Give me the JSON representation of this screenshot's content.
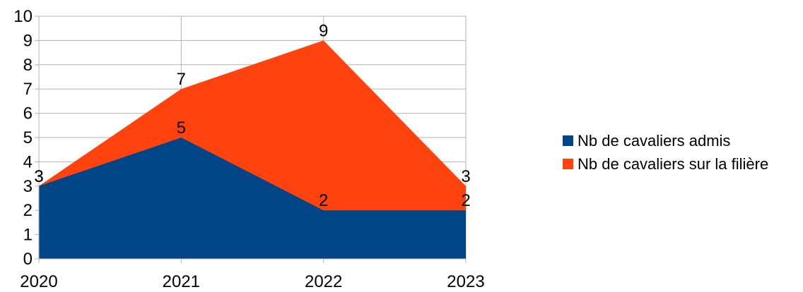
{
  "chart_data": {
    "type": "area",
    "stacked": false,
    "categories": [
      "2020",
      "2021",
      "2022",
      "2023"
    ],
    "series": [
      {
        "name": "Nb de cavaliers sur la filière",
        "values": [
          3,
          7,
          9,
          3
        ],
        "color": "#ff420e"
      },
      {
        "name": "Nb de cavaliers admis",
        "values": [
          3,
          5,
          2,
          2
        ],
        "color": "#004586"
      }
    ],
    "yticks": [
      "0",
      "1",
      "2",
      "3",
      "4",
      "5",
      "6",
      "7",
      "8",
      "9",
      "10"
    ],
    "ylim": [
      0,
      10
    ],
    "title": "",
    "xlabel": "",
    "ylabel": "",
    "grid": true,
    "legend_position": "right",
    "legend": [
      {
        "label": "Nb de cavaliers admis",
        "color": "#004586"
      },
      {
        "label": "Nb de cavaliers sur la filière",
        "color": "#ff420e"
      }
    ]
  }
}
